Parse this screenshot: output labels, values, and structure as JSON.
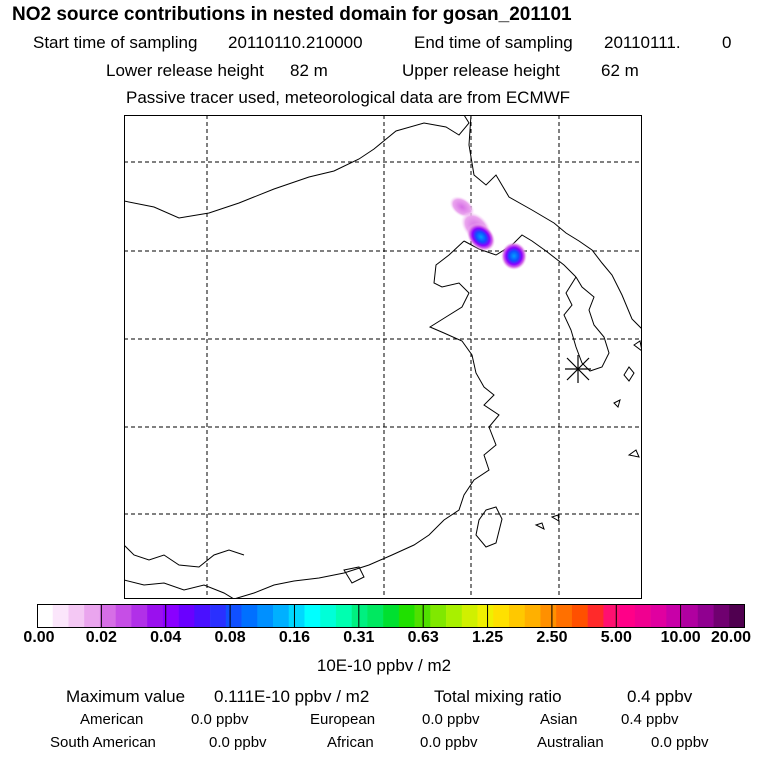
{
  "title": "NO2 source contributions in nested domain for gosan_201101",
  "header": {
    "start_label": "Start time of sampling",
    "start_value": "20110110.210000",
    "end_label": "End time of sampling",
    "end_value": "20110111.",
    "end_extra": "0",
    "lower_label": "Lower release height",
    "lower_value": "82 m",
    "upper_label": "Upper release height",
    "upper_value": "62 m",
    "note": "Passive tracer used, meteorological data are from ECMWF"
  },
  "colorbar": {
    "ticks": [
      "0.00",
      "0.02",
      "0.04",
      "0.08",
      "0.16",
      "0.31",
      "0.63",
      "1.25",
      "2.50",
      "5.00",
      "10.00",
      "20.00"
    ],
    "colors": [
      "#ffffff",
      "#fbe6fb",
      "#f4c8f4",
      "#eaa5ee",
      "#d66ee6",
      "#c64ee6",
      "#b130e8",
      "#9a10ee",
      "#8a00ff",
      "#6a00ff",
      "#4a10ff",
      "#2a30ff",
      "#1050ff",
      "#0070ff",
      "#0090ff",
      "#00b0ff",
      "#00d8ff",
      "#00ffff",
      "#00ffd8",
      "#00ffb0",
      "#00f080",
      "#00e860",
      "#00e030",
      "#20e000",
      "#50e000",
      "#80e800",
      "#a8f000",
      "#d0f000",
      "#f0f000",
      "#ffe000",
      "#ffc800",
      "#ffb000",
      "#ff9000",
      "#ff7000",
      "#ff5000",
      "#ff2a2a",
      "#ff1070",
      "#ff0088",
      "#f00090",
      "#e000a0",
      "#c800a8",
      "#b000a0",
      "#900090",
      "#700070",
      "#500050"
    ],
    "unit": "10E-10 ppbv / m2"
  },
  "stats": {
    "max_label": "Maximum value",
    "max_value": "0.111E-10 ppbv / m2",
    "total_label": "Total mixing ratio",
    "total_value": "0.4 ppbv",
    "regions": [
      {
        "name": "American",
        "value": "0.0 ppbv"
      },
      {
        "name": "European",
        "value": "0.0 ppbv"
      },
      {
        "name": "Asian",
        "value": "0.4 ppbv"
      },
      {
        "name": "South American",
        "value": "0.0 ppbv"
      },
      {
        "name": "African",
        "value": "0.0 ppbv"
      },
      {
        "name": "Australian",
        "value": "0.0 ppbv"
      }
    ]
  }
}
